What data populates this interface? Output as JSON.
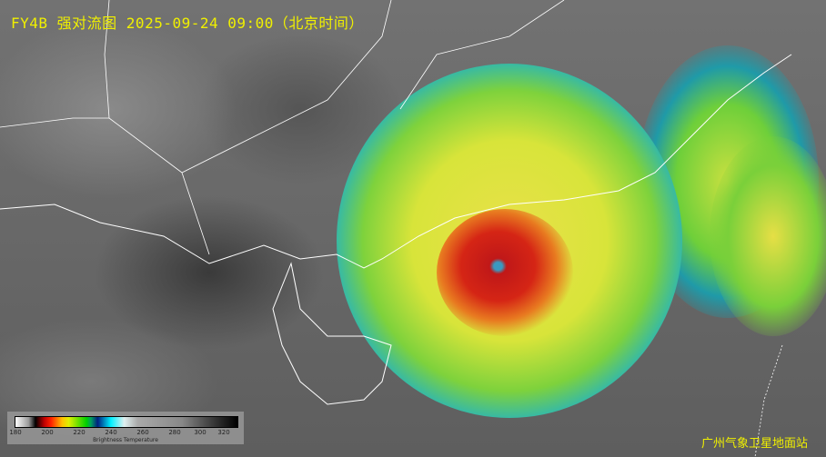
{
  "title": "FY4B 强对流图 2025-09-24 09:00（北京时间）",
  "legend": {
    "title": "Brightness Temperature",
    "ticks": [
      "180",
      "200",
      "220",
      "240",
      "260",
      "280",
      "300",
      "320"
    ]
  },
  "station": "广州气象卫星地面站",
  "colors": {
    "text": "#f0f000"
  }
}
